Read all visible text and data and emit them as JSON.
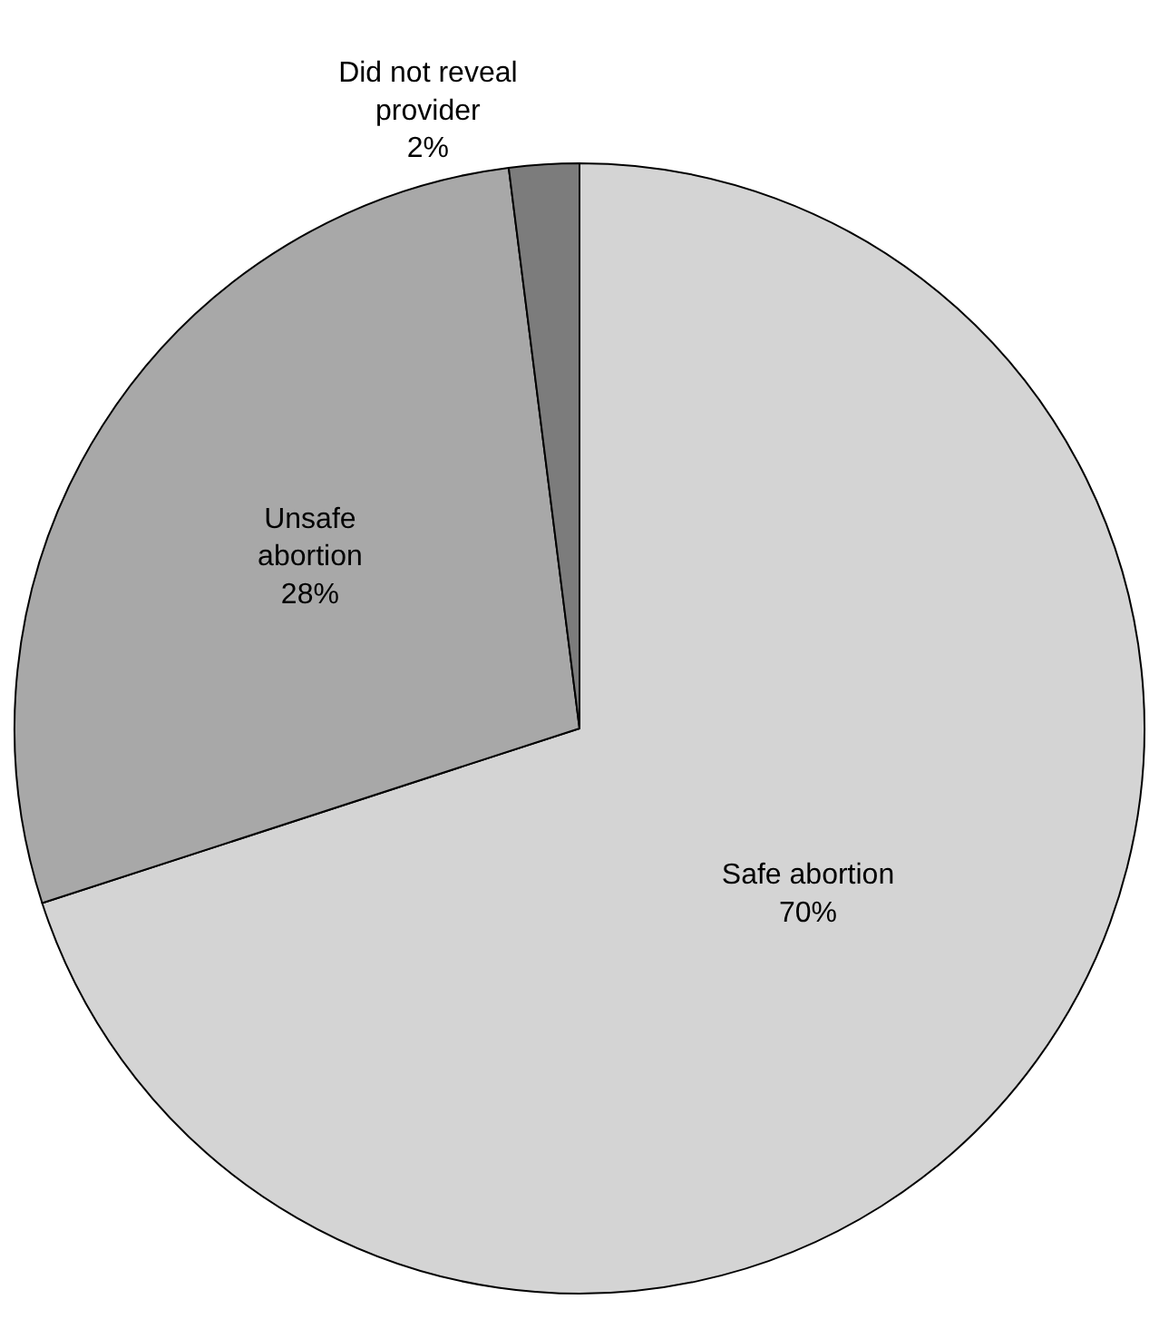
{
  "chart_data": {
    "type": "pie",
    "categories": [
      "Safe abortion",
      "Unsafe abortion",
      "Did not reveal provider"
    ],
    "values": [
      70,
      28,
      2
    ],
    "colors": [
      "#d4d4d4",
      "#a8a8a8",
      "#7c7c7c"
    ],
    "value_labels": [
      "70%",
      "28%",
      "2%"
    ]
  }
}
